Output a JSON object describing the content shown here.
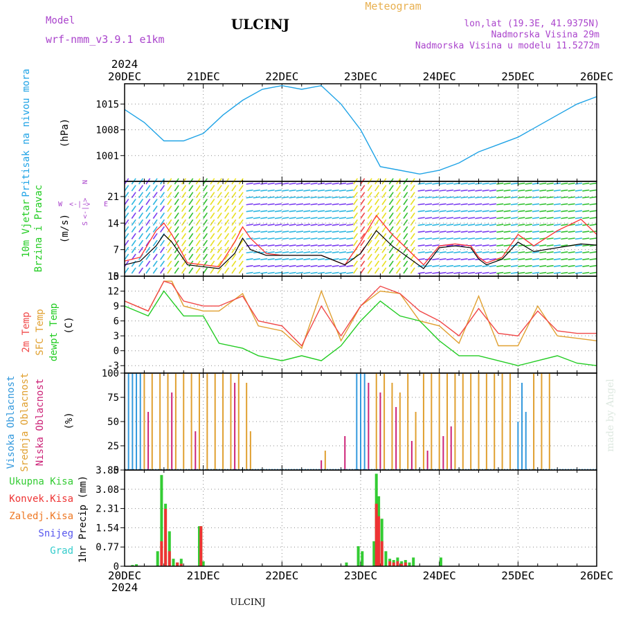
{
  "header": {
    "model_label": "Model",
    "model_value": "wrf-nmm_v3.9.1 e1km",
    "station": "ULCINJ",
    "product": "Meteogram",
    "lonlat": "lon,lat (19.3E, 41.9375N)",
    "elevation": "Nadmorska Visina 29m",
    "model_elevation": "Nadmorska Visina u modelu 11.5272m"
  },
  "footer": {
    "station": "ULCINJ",
    "credit": "made by Angel"
  },
  "colors": {
    "pressure": "#1fa3e6",
    "temp2m": "#f04848",
    "sfc_temp": "#e0a030",
    "dewpt": "#22cc22",
    "wind_speed": "#000000",
    "wind_gust": "#ff3030",
    "high_cloud": "#3399dd",
    "mid_cloud": "#e0a030",
    "low_cloud": "#cc2277",
    "precip_total": "#33cc33",
    "precip_conv": "#ee3333",
    "precip_frozen": "#ee7722",
    "snow": "#5555ee",
    "graupel": "#33cccc",
    "header_purple": "#aa44cc",
    "header_orange": "#e8b050"
  },
  "chart_data": [
    {
      "type": "line",
      "panel": "pressure",
      "x_labels": [
        "20DEC",
        "21DEC",
        "22DEC",
        "23DEC",
        "24DEC",
        "25DEC",
        "26DEC"
      ],
      "year": "2024",
      "ylabel": "Pritisak na nivou mora",
      "unit": "(hPa)",
      "ylim": [
        994,
        1020.5
      ],
      "yticks": [
        "1015",
        "1008",
        "1001"
      ],
      "grid": true,
      "series": [
        {
          "x": [
            0,
            0.25,
            0.5,
            0.75,
            1,
            1.25,
            1.5,
            1.75,
            2,
            2.25,
            2.5,
            2.75,
            3,
            3.25,
            3.5,
            3.75,
            4,
            4.25,
            4.5,
            4.75,
            5,
            5.25,
            5.5,
            5.75,
            6
          ],
          "y": [
            1013.5,
            1010,
            1005,
            1005,
            1007,
            1012,
            1016,
            1019,
            1020,
            1019,
            1020,
            1015,
            1008,
            998,
            997,
            996,
            997,
            999,
            1002,
            1004,
            1006,
            1009,
            1012,
            1015,
            1017
          ]
        }
      ]
    },
    {
      "type": "line",
      "panel": "wind",
      "ylabel": "10m Vjetar Brzina i Pravac",
      "unit": "(m/s)",
      "compass_labels": [
        "N",
        "W",
        "E",
        "S"
      ],
      "ylim": [
        0,
        25
      ],
      "yticks": [
        "21",
        "14",
        "7",
        "0"
      ],
      "grid": true,
      "series": [
        {
          "role": "wind speed",
          "x": [
            0,
            0.2,
            0.4,
            0.5,
            0.6,
            0.8,
            1,
            1.2,
            1.4,
            1.5,
            1.6,
            1.8,
            2,
            2.2,
            2.5,
            2.8,
            3,
            3.2,
            3.4,
            3.6,
            3.8,
            4,
            4.2,
            4.4,
            4.5,
            4.6,
            4.8,
            5,
            5.2,
            5.5,
            5.8,
            6
          ],
          "y": [
            3,
            4,
            8,
            11,
            9,
            3,
            2.5,
            2,
            6,
            10,
            7,
            5.5,
            5.5,
            5.5,
            5.5,
            3,
            6,
            12,
            8,
            5,
            2,
            7.5,
            8,
            7.5,
            4.5,
            3,
            4.5,
            9,
            6.5,
            7.5,
            8.5,
            8.2
          ]
        },
        {
          "role": "wind gust",
          "x": [
            0,
            0.2,
            0.4,
            0.5,
            0.6,
            0.8,
            1,
            1.2,
            1.4,
            1.5,
            1.6,
            1.8,
            2,
            2.2,
            2.5,
            2.8,
            3,
            3.2,
            3.4,
            3.6,
            3.8,
            4,
            4.2,
            4.4,
            4.5,
            4.6,
            4.8,
            5,
            5.2,
            5.5,
            5.8,
            6
          ],
          "y": [
            4,
            5,
            12,
            14,
            11,
            3.5,
            3,
            2.5,
            9,
            13,
            10,
            6,
            5.5,
            5.5,
            5.5,
            3,
            9,
            16,
            11,
            7,
            3,
            8,
            8.5,
            8,
            5,
            3.5,
            5,
            11,
            8,
            12,
            15,
            11
          ]
        }
      ]
    },
    {
      "type": "line",
      "panel": "temperature",
      "ylabel_lines": [
        "2m Temp",
        "SFC Temp",
        "dewpt Temp"
      ],
      "unit": "(C)",
      "ylim": [
        -4.5,
        15
      ],
      "yticks": [
        "15",
        "12",
        "9",
        "6",
        "3",
        "0",
        "-3"
      ],
      "grid": true,
      "series": [
        {
          "name": "2m Temp",
          "x": [
            0,
            0.3,
            0.5,
            0.6,
            0.75,
            1,
            1.2,
            1.5,
            1.7,
            2,
            2.25,
            2.5,
            2.75,
            3,
            3.25,
            3.5,
            3.75,
            4,
            4.25,
            4.5,
            4.75,
            5,
            5.25,
            5.5,
            5.75,
            6
          ],
          "y": [
            10,
            8,
            14,
            13.5,
            10,
            9,
            9,
            11,
            6,
            5,
            1,
            9,
            3,
            9,
            13,
            11.5,
            8,
            6,
            3,
            8.5,
            3.5,
            3,
            8,
            4,
            3.5,
            3.5
          ]
        },
        {
          "name": "SFC Temp",
          "x": [
            0,
            0.3,
            0.5,
            0.6,
            0.75,
            1,
            1.2,
            1.5,
            1.7,
            2,
            2.25,
            2.5,
            2.75,
            3,
            3.25,
            3.5,
            3.75,
            4,
            4.25,
            4.5,
            4.75,
            5,
            5.25,
            5.5,
            5.75,
            6
          ],
          "y": [
            10,
            8,
            14,
            14,
            9,
            8,
            8,
            11.5,
            5,
            4,
            0.5,
            12,
            2,
            9,
            12,
            11.5,
            6,
            5,
            1.5,
            11,
            1,
            1,
            9,
            3,
            2.5,
            2
          ]
        },
        {
          "name": "dewpt Temp",
          "x": [
            0,
            0.3,
            0.5,
            0.6,
            0.75,
            1,
            1.2,
            1.5,
            1.7,
            2,
            2.25,
            2.5,
            2.75,
            3,
            3.25,
            3.5,
            3.75,
            4,
            4.25,
            4.5,
            4.75,
            5,
            5.25,
            5.5,
            5.75,
            6
          ],
          "y": [
            9,
            7,
            12,
            10,
            7,
            7,
            1.5,
            0.5,
            -1,
            -2,
            -1,
            -2,
            1,
            6,
            10,
            7,
            6,
            2,
            -1,
            -1,
            -2,
            -3,
            -2,
            -1,
            -2.5,
            -3
          ]
        }
      ]
    },
    {
      "type": "bar",
      "panel": "cloud",
      "ylabel_lines": [
        "Visoka Oblacnost",
        "Srednja Oblacnost",
        "Niska Oblacnost"
      ],
      "unit": "(%)",
      "ylim": [
        0,
        100
      ],
      "yticks": [
        "100",
        "75",
        "50",
        "25",
        "0"
      ],
      "grid": true,
      "series": [
        {
          "name": "Visoka Oblacnost",
          "x": [
            0.05,
            0.1,
            0.15,
            0.2,
            2.95,
            3.0,
            3.05,
            5.0,
            5.05,
            5.1
          ],
          "values": [
            100,
            100,
            100,
            100,
            100,
            100,
            100,
            50,
            90,
            60
          ]
        },
        {
          "name": "Srednja Oblacnost",
          "x": [
            0.25,
            0.35,
            0.45,
            0.55,
            0.65,
            0.75,
            0.85,
            0.95,
            1.05,
            1.15,
            1.25,
            1.35,
            1.45,
            1.55,
            1.6,
            2.55,
            3.2,
            3.3,
            3.4,
            3.5,
            3.6,
            3.7,
            3.8,
            3.9,
            4.0,
            4.1,
            4.2,
            4.3,
            4.4,
            4.5,
            4.6,
            4.7,
            4.8,
            4.9,
            5.2,
            5.3,
            5.4
          ],
          "values": [
            100,
            100,
            100,
            100,
            100,
            100,
            100,
            100,
            100,
            100,
            100,
            100,
            100,
            90,
            40,
            20,
            100,
            100,
            90,
            80,
            100,
            60,
            100,
            100,
            100,
            100,
            100,
            100,
            100,
            100,
            100,
            100,
            100,
            100,
            100,
            100,
            100
          ]
        },
        {
          "name": "Niska Oblacnost",
          "x": [
            0.3,
            0.6,
            0.9,
            1.4,
            2.5,
            2.8,
            3.1,
            3.25,
            3.45,
            3.65,
            3.85,
            4.05,
            4.15
          ],
          "values": [
            60,
            80,
            40,
            90,
            10,
            35,
            90,
            80,
            65,
            30,
            20,
            35,
            45
          ]
        }
      ]
    },
    {
      "type": "bar",
      "panel": "precip",
      "legend": [
        "Ukupna Kisa",
        "Konvek.Kisa",
        "Zaledj.Kisa",
        "Snijeg",
        "Grad"
      ],
      "ylabel": "1hr Precip (mm)",
      "ylim": [
        0,
        3.85
      ],
      "yticks": [
        "3.85",
        "3.08",
        "2.31",
        "1.54",
        "0.77",
        "0"
      ],
      "grid": true,
      "series": [
        {
          "name": "Ukupna Kisa",
          "x": [
            0.1,
            0.15,
            0.42,
            0.47,
            0.52,
            0.57,
            0.62,
            0.67,
            0.72,
            0.95,
            0.97,
            1.0,
            2.82,
            2.97,
            3.02,
            3.17,
            3.2,
            3.23,
            3.27,
            3.32,
            3.37,
            3.42,
            3.47,
            3.52,
            3.57,
            3.62,
            3.67,
            4.02
          ],
          "values": [
            0.05,
            0.08,
            0.6,
            3.65,
            2.5,
            1.4,
            0.3,
            0.15,
            0.3,
            1.6,
            1.6,
            0.2,
            0.15,
            0.8,
            0.6,
            1.0,
            3.7,
            2.8,
            1.9,
            0.6,
            0.3,
            0.25,
            0.35,
            0.2,
            0.25,
            0.15,
            0.35,
            0.35
          ]
        },
        {
          "name": "Konvek.Kisa",
          "x": [
            0.47,
            0.52,
            0.57,
            0.67,
            0.72,
            0.97,
            3.2,
            3.23,
            3.27,
            3.37,
            3.42,
            3.47,
            3.52,
            3.57
          ],
          "values": [
            1.0,
            2.3,
            0.6,
            0.15,
            0.1,
            1.6,
            2.5,
            2.0,
            1.0,
            0.2,
            0.15,
            0.2,
            0.1,
            0.15
          ]
        }
      ]
    }
  ]
}
